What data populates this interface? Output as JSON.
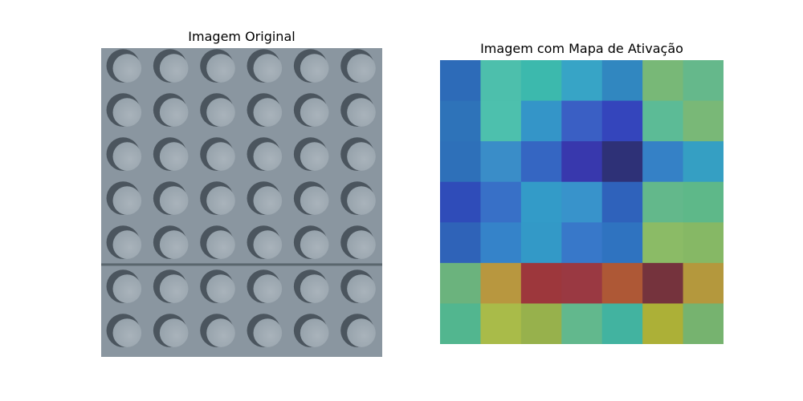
{
  "figure": {
    "left_title": "Imagem Original",
    "right_title": "Imagem com Mapa de Ativação"
  },
  "original_image": {
    "description_icon": "tactile-paving-tile-image",
    "rows": 7,
    "cols": 6,
    "base_color": "#8a96a0",
    "dome_shadow_color": "#3f4a52",
    "dome_color": "#97a3ac",
    "seam_color": "#4e5a60"
  },
  "activation_map": {
    "rows": 7,
    "cols": 7,
    "colors": [
      [
        "#2d6bb8",
        "#4dbfac",
        "#3cb9ad",
        "#37a4c6",
        "#3187c0",
        "#78b877",
        "#65b88b"
      ],
      [
        "#2e73b9",
        "#4dc0ad",
        "#3495c8",
        "#3a5fc4",
        "#3445bc",
        "#5cbb96",
        "#79b877"
      ],
      [
        "#2e70b9",
        "#3a8dc8",
        "#3566c2",
        "#3838ad",
        "#2e3177",
        "#3581c6",
        "#359fc3"
      ],
      [
        "#2f4cb9",
        "#3870c7",
        "#339bc8",
        "#3893cb",
        "#2f62bb",
        "#63b88b",
        "#5eb889"
      ],
      [
        "#2f63b8",
        "#3583c9",
        "#3399c7",
        "#3878c9",
        "#2f73c0",
        "#8bbb66",
        "#86b865"
      ],
      [
        "#6bb37d",
        "#b8973f",
        "#9d373c",
        "#9a3942",
        "#ae5836",
        "#75333d",
        "#b4983d"
      ],
      [
        "#52b68f",
        "#a9bb49",
        "#97b14c",
        "#62b88d",
        "#42b3a0",
        "#acb037",
        "#76b36f"
      ]
    ]
  }
}
